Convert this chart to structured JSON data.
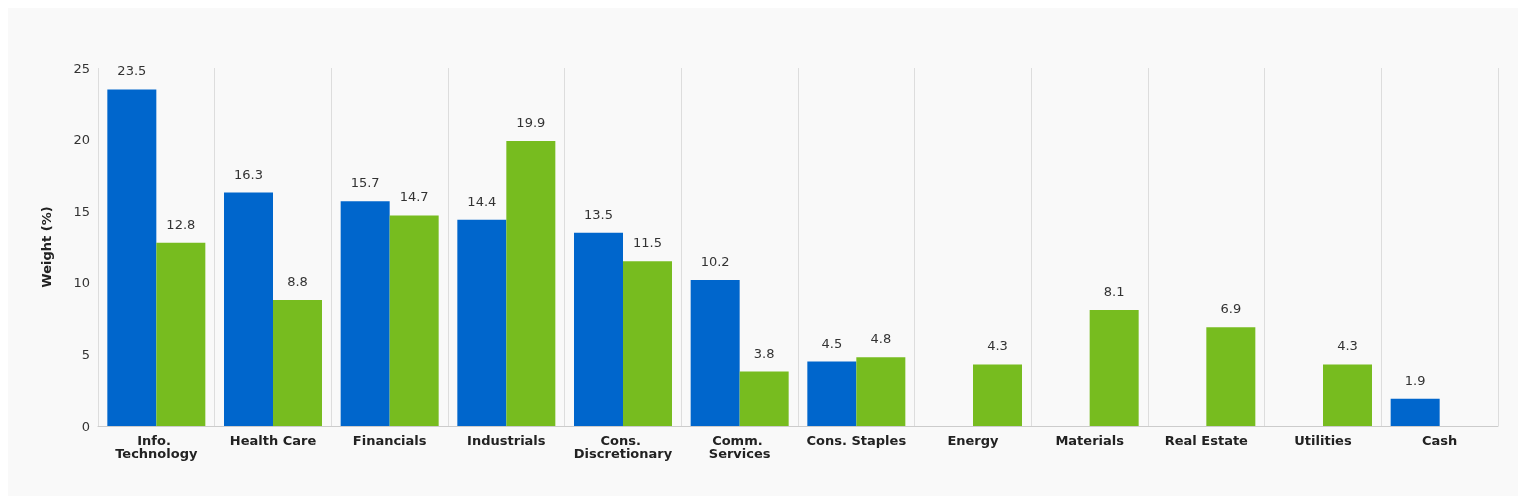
{
  "chart_data": {
    "type": "bar",
    "ylabel": "Weight (%)",
    "categories": [
      "Info. Technology",
      "Health Care",
      "Financials",
      "Industrials",
      "Cons. Discretionary",
      "Comm. Services",
      "Cons. Staples",
      "Energy",
      "Materials",
      "Real Estate",
      "Utilities",
      "Cash"
    ],
    "series": [
      {
        "color": "#0066cc",
        "values": [
          23.5,
          16.3,
          15.7,
          14.4,
          13.5,
          10.2,
          4.5,
          null,
          null,
          null,
          null,
          1.9
        ]
      },
      {
        "color": "#77bc1f",
        "values": [
          12.8,
          8.8,
          14.7,
          19.9,
          11.5,
          3.8,
          4.8,
          4.3,
          8.1,
          6.9,
          4.3,
          null
        ]
      }
    ],
    "ylim": [
      0,
      25
    ],
    "yticks": [
      0,
      5,
      10,
      15,
      20,
      25
    ],
    "grid": "x",
    "data_labels": true
  }
}
